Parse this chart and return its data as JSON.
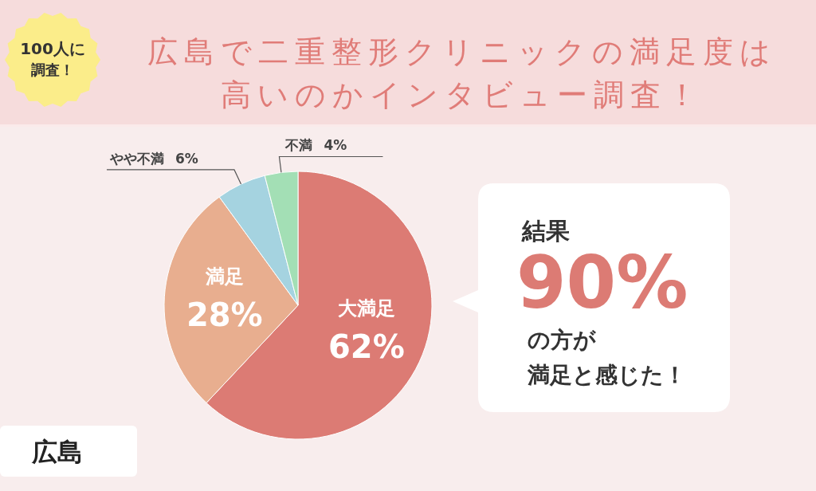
{
  "chart_data": {
    "type": "pie",
    "title": "広島で二重整形クリニックの満足度は高いのかインタビュー調査！",
    "categories": [
      "大満足",
      "満足",
      "やや不満",
      "不満"
    ],
    "values": [
      62,
      28,
      6,
      4
    ],
    "colors": [
      "#dc7b74",
      "#e8ae8f",
      "#a5d3e0",
      "#a3dfb5"
    ],
    "value_labels": [
      "62%",
      "28%",
      "6%",
      "4%"
    ],
    "annotations": [
      "100人に",
      "調査！",
      "広島",
      "結果",
      "90%",
      "の方が",
      "満足と感じた！"
    ]
  }
}
